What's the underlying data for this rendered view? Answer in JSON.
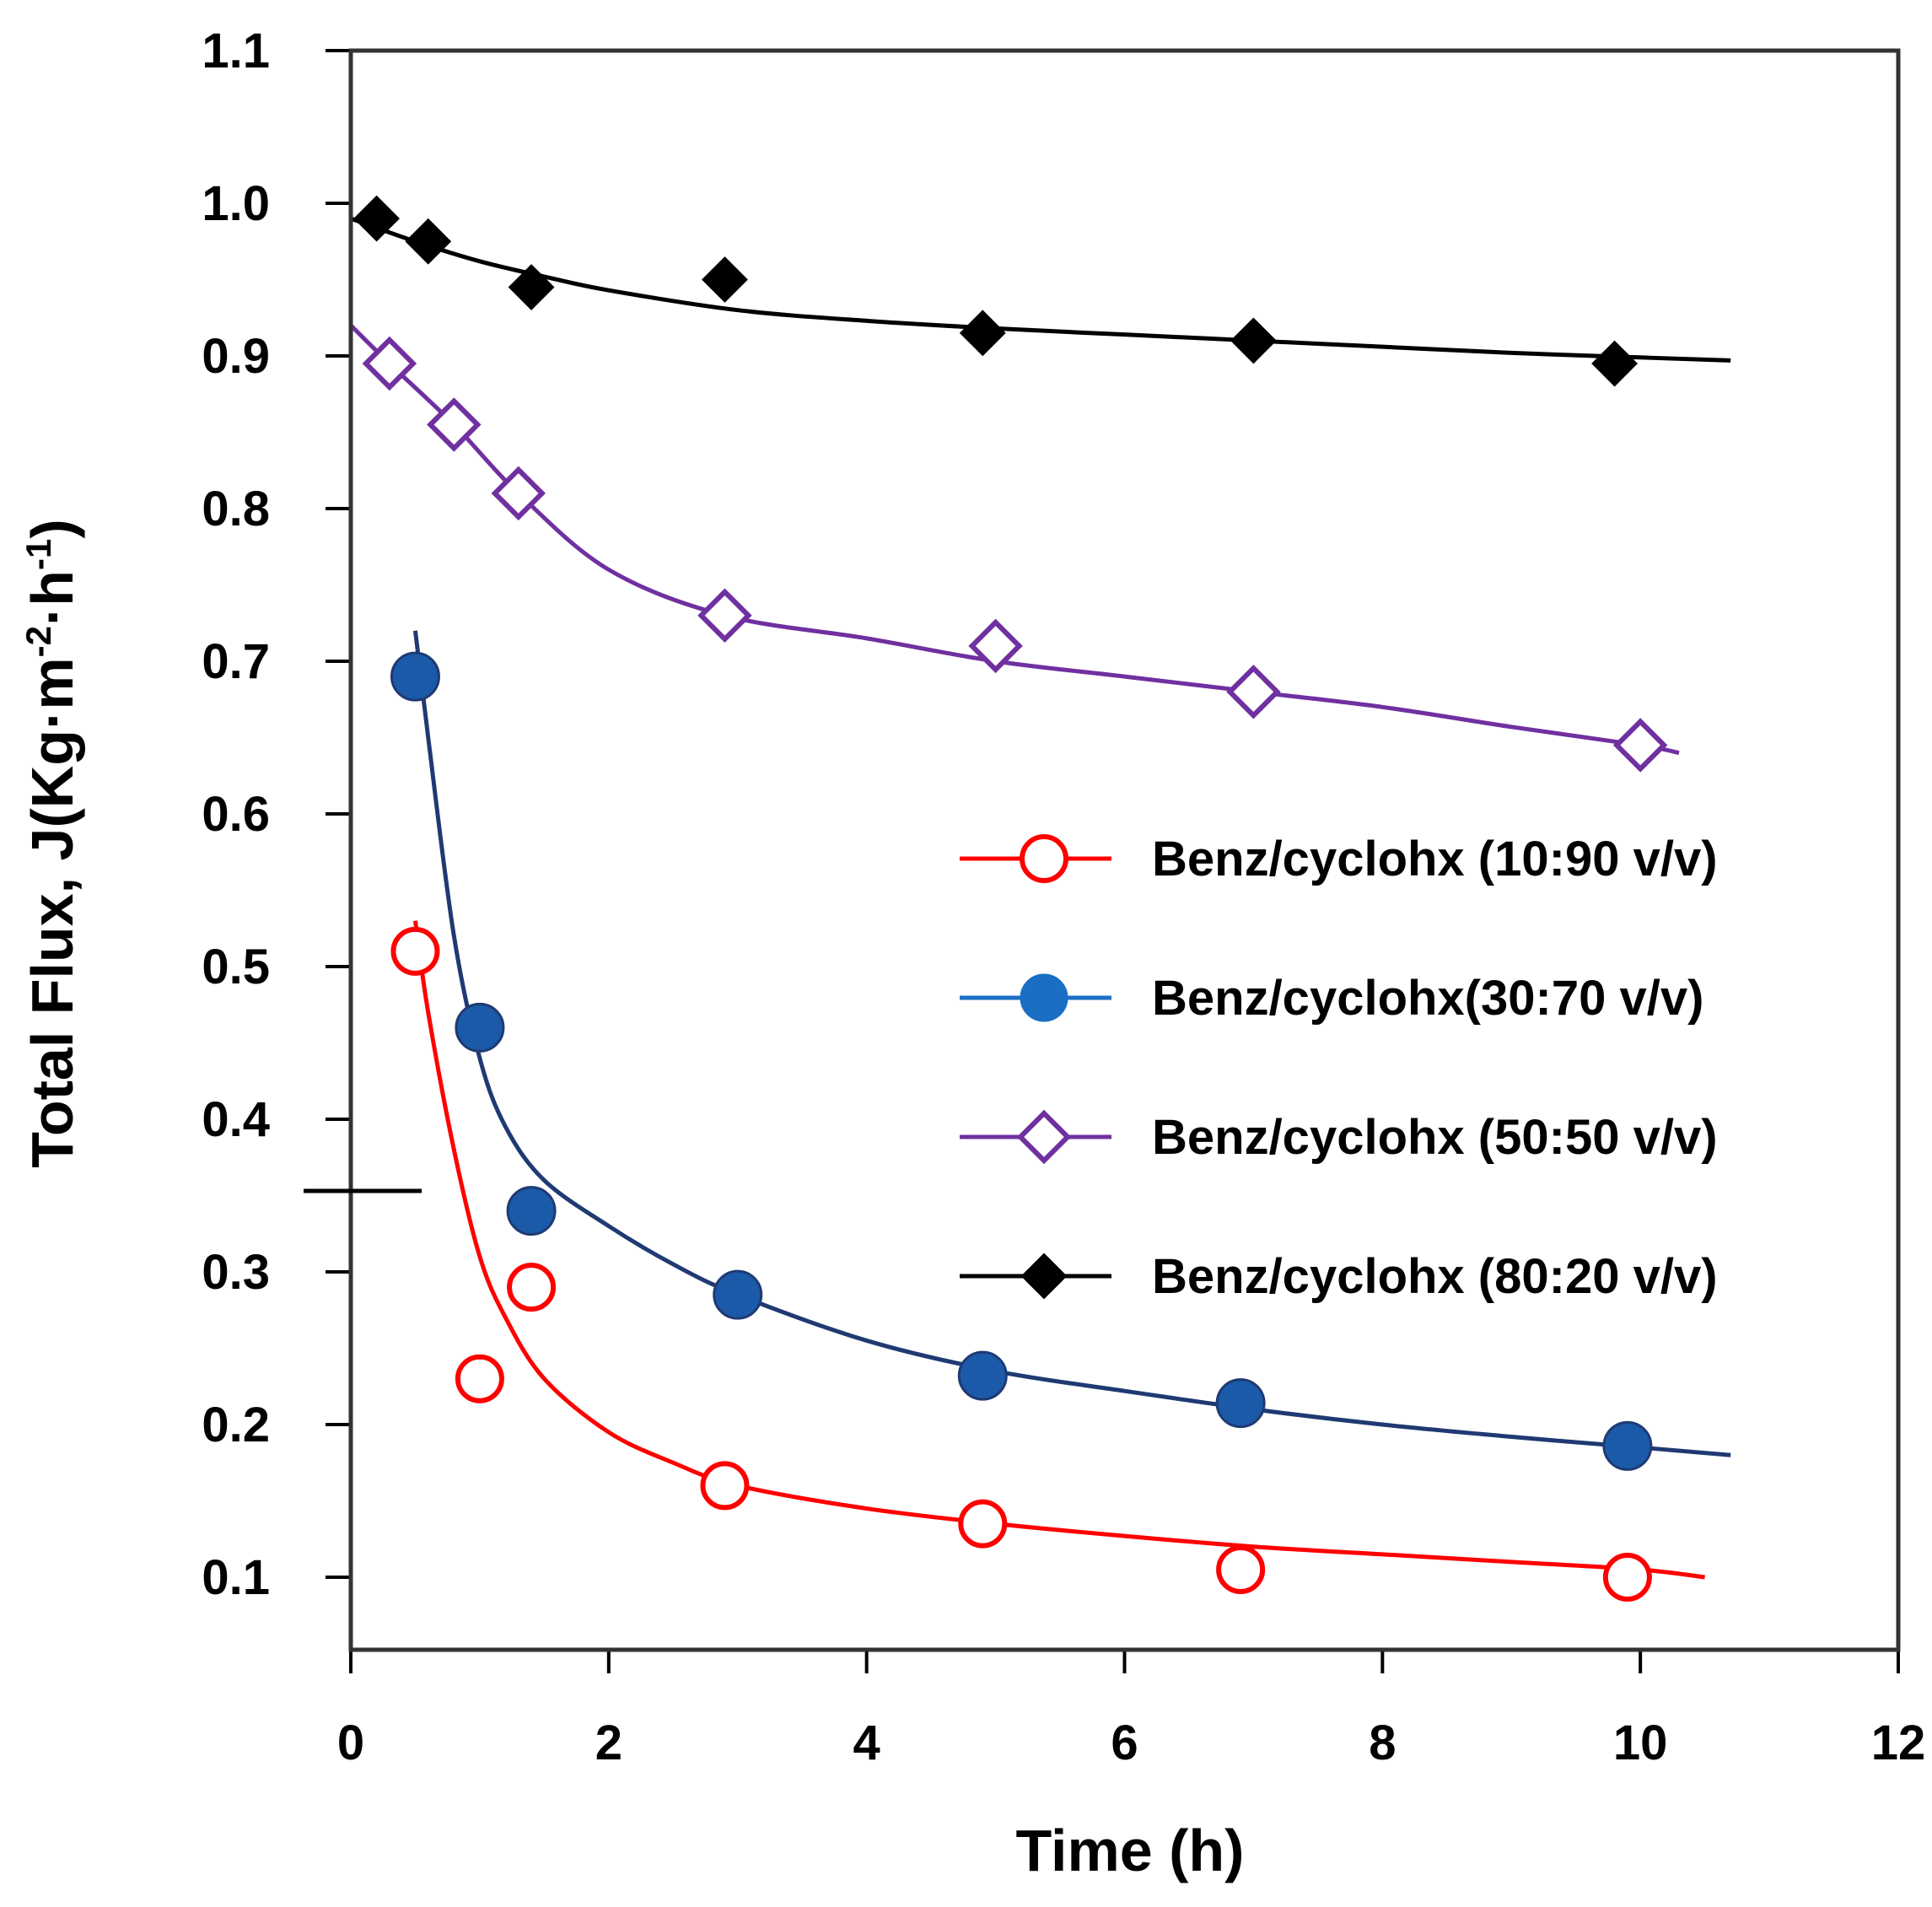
{
  "chart_data": {
    "type": "scatter",
    "title": "",
    "xlabel": "Time (h)",
    "ylabel_main": "Total Flux, J(Kg·m",
    "ylabel_sup1": "-2",
    "ylabel_mid": "·h",
    "ylabel_sup2": "-1",
    "ylabel_end": ")",
    "xlim": [
      0,
      12
    ],
    "ylim": [
      0.1,
      1.1
    ],
    "x_ticks": [
      0,
      2,
      4,
      6,
      8,
      10,
      12
    ],
    "x_tick_labels": [
      "0",
      "2",
      "4",
      "6",
      "8",
      "10",
      "12"
    ],
    "y_ticks": [
      0.1,
      0.2,
      0.3,
      0.4,
      0.5,
      0.6,
      0.7,
      0.8,
      0.9,
      1.0,
      1.1
    ],
    "y_tick_labels": [
      "0.1",
      "0.2",
      "0.3",
      "0.4",
      "0.5",
      "0.6",
      "0.7",
      "0.8",
      "0.9",
      "1.0",
      "1.1"
    ],
    "legend_position": "center-right",
    "series": [
      {
        "name": "Benz/cyclohx (10:90 v/v)",
        "color": "#ff0000",
        "marker": "open-circle",
        "x": [
          0.5,
          1.0,
          1.4,
          2.9,
          4.9,
          6.9,
          9.9
        ],
        "y": [
          0.51,
          0.23,
          0.29,
          0.16,
          0.135,
          0.105,
          0.1
        ],
        "fit_x": [
          0.5,
          0.6,
          0.8,
          1.0,
          1.2,
          1.5,
          2.0,
          2.5,
          3.0,
          4.0,
          5.0,
          6.0,
          7.0,
          8.0,
          9.0,
          10.0,
          10.5
        ],
        "fit_y": [
          0.53,
          0.47,
          0.38,
          0.31,
          0.27,
          0.23,
          0.195,
          0.175,
          0.16,
          0.145,
          0.135,
          0.127,
          0.12,
          0.115,
          0.11,
          0.105,
          0.1
        ]
      },
      {
        "name": "Benz/cyclohx(30:70 v/v)",
        "color": "#1f3a73",
        "legend_color": "#1a6fc4",
        "marker": "filled-circle",
        "x": [
          0.5,
          1.0,
          1.4,
          3.0,
          4.9,
          6.9,
          9.9
        ],
        "y": [
          0.69,
          0.46,
          0.34,
          0.285,
          0.232,
          0.214,
          0.186
        ],
        "fit_x": [
          0.5,
          0.6,
          0.8,
          1.0,
          1.2,
          1.5,
          2.0,
          2.5,
          3.0,
          4.0,
          5.0,
          6.0,
          7.0,
          8.0,
          9.0,
          10.0,
          10.7
        ],
        "fit_y": [
          0.72,
          0.65,
          0.52,
          0.44,
          0.395,
          0.36,
          0.33,
          0.305,
          0.285,
          0.255,
          0.235,
          0.222,
          0.21,
          0.2,
          0.192,
          0.185,
          0.18
        ]
      },
      {
        "name": "Benz/cyclohx (50:50 v/v)",
        "color": "#7030a0",
        "marker": "open-diamond",
        "x": [
          0.3,
          0.8,
          1.3,
          2.9,
          5.0,
          7.0,
          10.0
        ],
        "y": [
          0.895,
          0.855,
          0.81,
          0.73,
          0.71,
          0.68,
          0.645
        ],
        "fit_x": [
          0.0,
          0.3,
          0.8,
          1.3,
          2.0,
          2.9,
          4.0,
          5.0,
          6.0,
          7.0,
          8.0,
          9.0,
          10.0,
          10.3
        ],
        "fit_y": [
          0.92,
          0.895,
          0.855,
          0.81,
          0.76,
          0.73,
          0.715,
          0.7,
          0.69,
          0.68,
          0.67,
          0.657,
          0.645,
          0.64
        ]
      },
      {
        "name": "Benz/cyclohx (80:20 v/v)",
        "color": "#000000",
        "marker": "filled-diamond",
        "x": [
          0.2,
          0.6,
          1.4,
          2.9,
          4.9,
          7.0,
          9.8
        ],
        "y": [
          0.99,
          0.975,
          0.945,
          0.95,
          0.915,
          0.91,
          0.895
        ],
        "fit_x": [
          0.0,
          0.5,
          1.0,
          1.5,
          2.0,
          3.0,
          4.0,
          5.0,
          6.0,
          7.0,
          8.0,
          9.0,
          10.0,
          10.7
        ],
        "fit_y": [
          0.99,
          0.975,
          0.962,
          0.952,
          0.943,
          0.93,
          0.923,
          0.918,
          0.914,
          0.91,
          0.906,
          0.902,
          0.899,
          0.897
        ]
      }
    ]
  }
}
